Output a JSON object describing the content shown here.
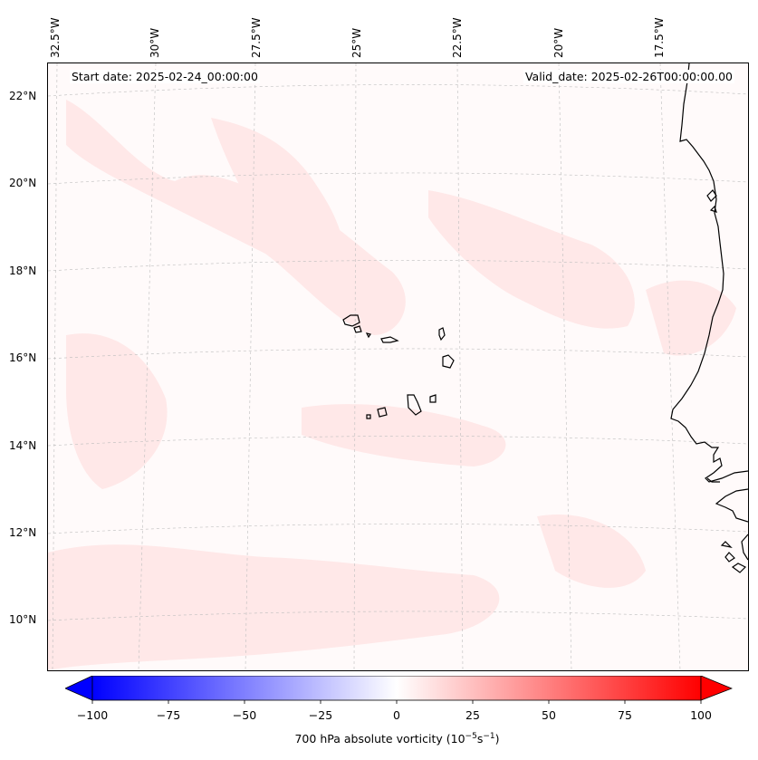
{
  "map": {
    "start_date_text": "Start date: 2025-02-24_00:00:00",
    "valid_date_text": "Valid_date: 2025-02-26T00:00:00.00",
    "longitude_labels": [
      "32.5°W",
      "30°W",
      "27.5°W",
      "25°W",
      "22.5°W",
      "20°W",
      "17.5°W"
    ],
    "latitude_labels": [
      "22°N",
      "20°N",
      "18°N",
      "16°N",
      "14°N",
      "12°N",
      "10°N"
    ],
    "field": "700 hPa absolute vorticity",
    "land_outline_color": "#000000",
    "background_color": "#fffafa",
    "positive_shade_color": "#ffe6e6"
  },
  "colorbar": {
    "ticks": [
      "−100",
      "−75",
      "−50",
      "−25",
      "0",
      "25",
      "50",
      "75",
      "100"
    ],
    "label_prefix": "700 hPa absolute vorticity (10",
    "label_exp1": "−5",
    "label_mid": "s",
    "label_exp2": "−1",
    "label_suffix": ")",
    "min_color": "#0000ff",
    "mid_color": "#ffffff",
    "max_color": "#ff0000"
  }
}
